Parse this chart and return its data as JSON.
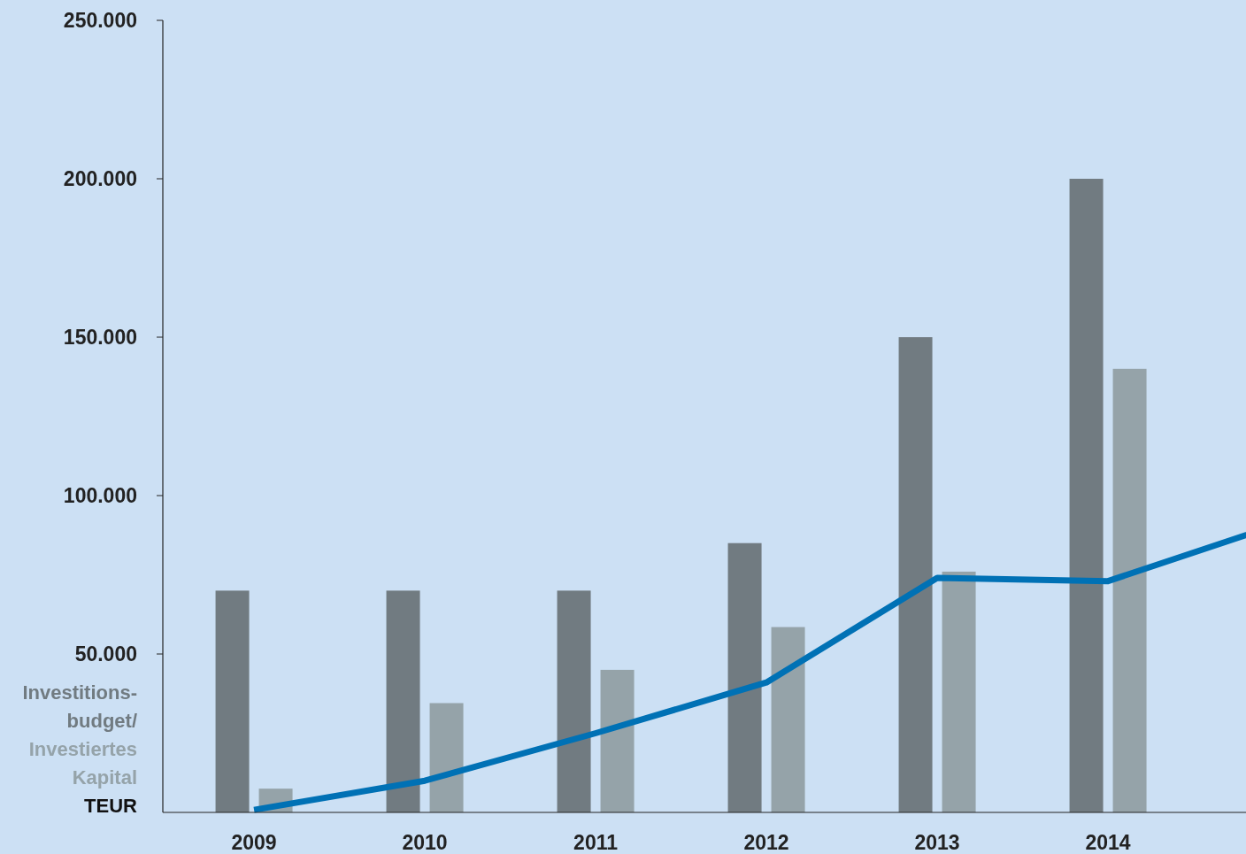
{
  "chart_data": {
    "type": "bar",
    "ylabel": "TEUR",
    "categories": [
      "2009",
      "2010",
      "2011",
      "2012",
      "2013",
      "2014",
      null
    ],
    "series": [
      {
        "name": "Investitions-budget/",
        "color": "#717b81",
        "values": [
          70000,
          70000,
          70000,
          85000,
          150000,
          200000,
          null
        ]
      },
      {
        "name": "Investiertes Kapital",
        "color": "#95a3a9",
        "values": [
          7500,
          34500,
          45000,
          58500,
          76000,
          140000,
          null
        ]
      },
      {
        "type": "line",
        "color": "#0071b5",
        "values": [
          800,
          10000,
          25000,
          41000,
          74000,
          73000,
          91000
        ]
      }
    ],
    "ylim": [
      0,
      250000
    ],
    "yticks": [
      {
        "value": 50000,
        "label": "50.000"
      },
      {
        "value": 100000,
        "label": "100.000"
      },
      {
        "value": 150000,
        "label": "150.000"
      },
      {
        "value": 200000,
        "label": "200.000"
      },
      {
        "value": 250000,
        "label": "250.000"
      }
    ],
    "grid": false,
    "legend": "left"
  }
}
